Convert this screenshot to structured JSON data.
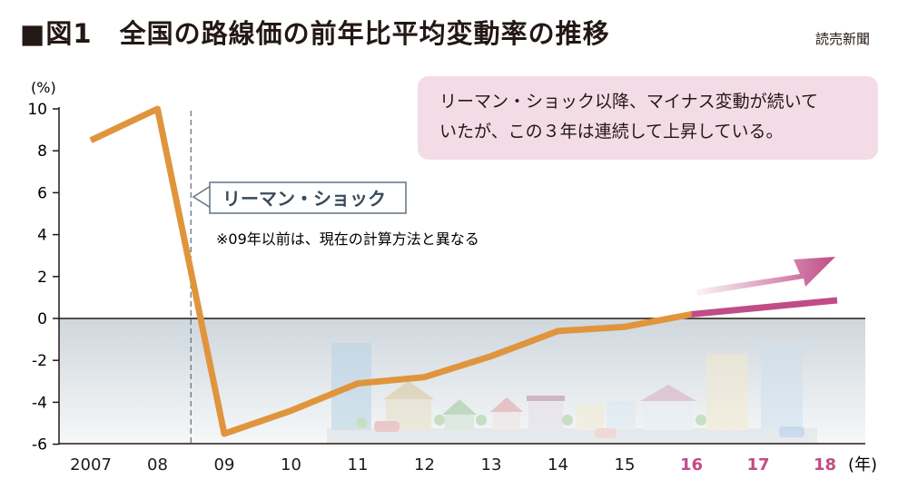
{
  "title": "■図1　全国の路線価の前年比平均変動率の推移",
  "source": "読売新聞",
  "callout": [
    "リーマン・ショック以降、マイナス変動が続いて",
    "いたが、この３年は連続して上昇している。"
  ],
  "event_label": "リーマン・ショック",
  "note": "※09年以前は、現在の計算方法と異なる",
  "colors": {
    "line": "#e0953d",
    "highlight": "#c04d86",
    "highlight_tick": "#c04d86"
  },
  "chart_data": {
    "type": "line",
    "y_unit_label": "(%)",
    "x_unit_label": "(年)",
    "ylim": [
      -6,
      10
    ],
    "yticks": [
      "10",
      "8",
      "6",
      "4",
      "2",
      "0",
      "-2",
      "-4",
      "-6"
    ],
    "x_labels": [
      "2007",
      "08",
      "09",
      "10",
      "11",
      "12",
      "13",
      "14",
      "15",
      "16",
      "17",
      "18"
    ],
    "highlighted_x_labels": [
      "16",
      "17",
      "18"
    ],
    "x": [
      2007,
      2008,
      2009,
      2010,
      2011,
      2012,
      2013,
      2014,
      2015,
      2016
    ],
    "values": [
      8.5,
      10.0,
      -5.5,
      -4.4,
      -3.1,
      -2.8,
      -1.8,
      -0.6,
      -0.4,
      0.2
    ],
    "trend_arrow": {
      "from_x": 2016,
      "direction": "upward"
    },
    "event_x": 2008.5
  }
}
